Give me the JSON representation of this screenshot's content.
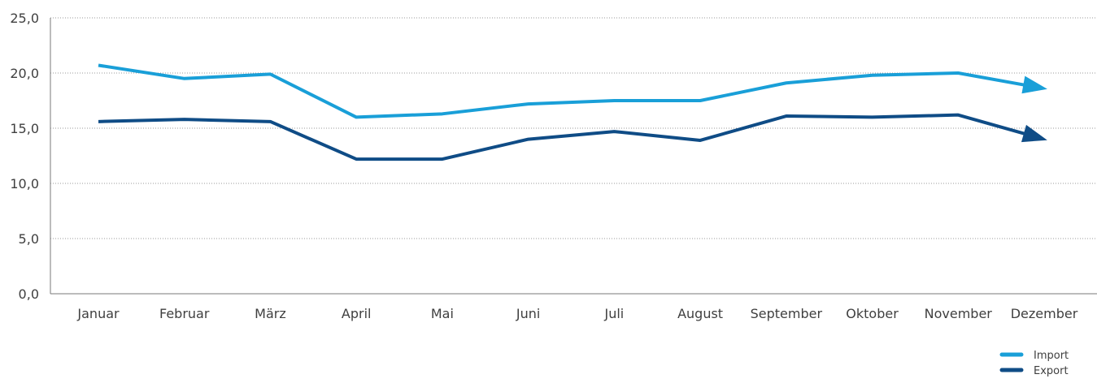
{
  "chart_data": {
    "type": "line",
    "categories": [
      "Januar",
      "Februar",
      "März",
      "April",
      "Mai",
      "Juni",
      "Juli",
      "August",
      "September",
      "Oktober",
      "November",
      "Dezember"
    ],
    "ylim": [
      0,
      25
    ],
    "yticks": [
      "0,0",
      "5,0",
      "10,0",
      "15,0",
      "20,0",
      "25,0"
    ],
    "grid": true,
    "legend_position": "bottom-right",
    "series": [
      {
        "name": "Import",
        "color": "#199fd8",
        "values": [
          20.7,
          19.5,
          19.9,
          16.0,
          16.3,
          17.2,
          17.5,
          17.5,
          19.1,
          19.8,
          20.0,
          18.6
        ]
      },
      {
        "name": "Export",
        "color": "#0f4c86",
        "values": [
          15.6,
          15.8,
          15.6,
          12.2,
          12.2,
          14.0,
          14.7,
          13.9,
          16.1,
          16.0,
          16.2,
          14.0
        ]
      }
    ]
  }
}
